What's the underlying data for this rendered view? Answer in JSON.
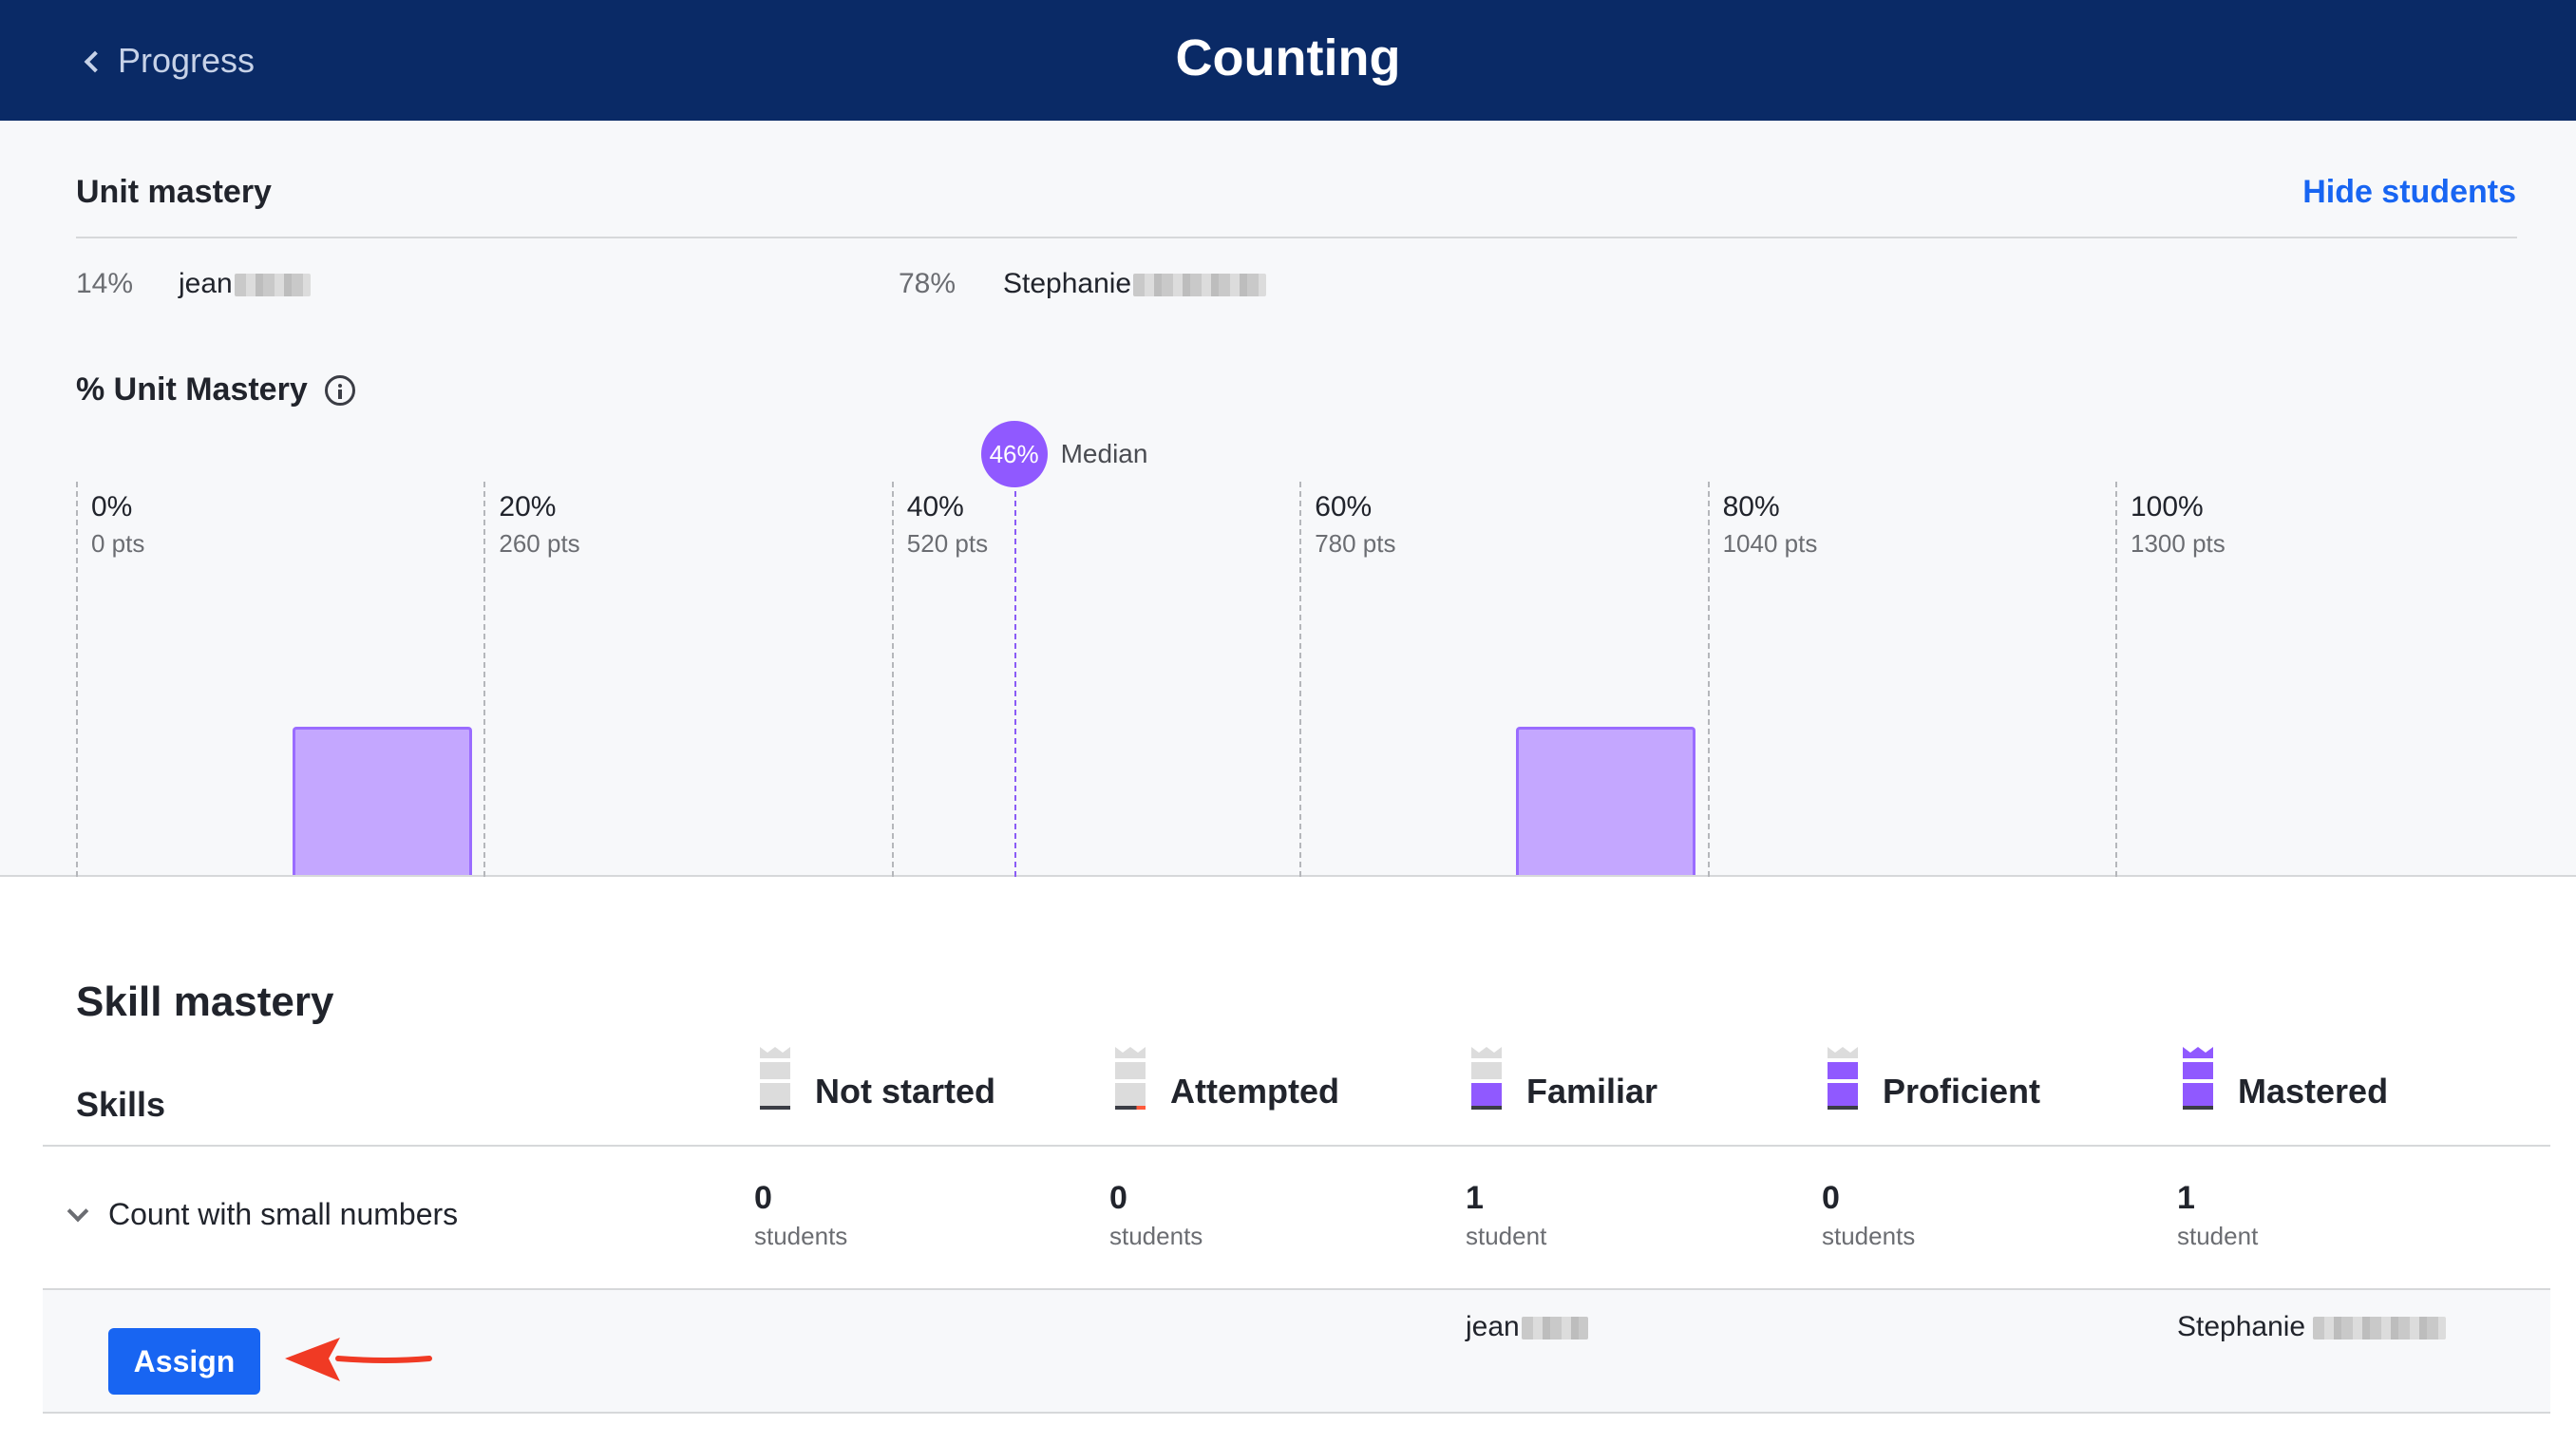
{
  "header": {
    "back_label": "Progress",
    "title": "Counting"
  },
  "unit_mastery": {
    "heading": "Unit mastery",
    "hide_students_label": "Hide students",
    "students": [
      {
        "percent": "14%",
        "name": "jean"
      },
      {
        "percent": "78%",
        "name": "Stephanie"
      }
    ]
  },
  "chart_title": "% Unit Mastery",
  "chart_data": {
    "type": "bar",
    "ticks": [
      {
        "pct": "0%",
        "pts": "0 pts"
      },
      {
        "pct": "20%",
        "pts": "260 pts"
      },
      {
        "pct": "40%",
        "pts": "520 pts"
      },
      {
        "pct": "60%",
        "pts": "780 pts"
      },
      {
        "pct": "80%",
        "pts": "1040 pts"
      },
      {
        "pct": "100%",
        "pts": "1300 pts"
      }
    ],
    "bins": [
      {
        "range": [
          10,
          20
        ],
        "count": 1
      },
      {
        "range": [
          70,
          80
        ],
        "count": 1
      }
    ],
    "median": {
      "value": 46,
      "badge": "46%",
      "label": "Median"
    },
    "xlim": [
      0,
      100
    ],
    "bar_color": "#c4a7ff"
  },
  "skill_mastery": {
    "heading": "Skill mastery",
    "skills_label": "Skills",
    "levels": [
      {
        "label": "Not started",
        "icon": "not-started-icon"
      },
      {
        "label": "Attempted",
        "icon": "attempted-icon"
      },
      {
        "label": "Familiar",
        "icon": "familiar-icon"
      },
      {
        "label": "Proficient",
        "icon": "proficient-icon"
      },
      {
        "label": "Mastered",
        "icon": "mastered-icon"
      }
    ],
    "row": {
      "skill": "Count with small numbers",
      "counts": [
        {
          "num": "0",
          "label": "students"
        },
        {
          "num": "0",
          "label": "students"
        },
        {
          "num": "1",
          "label": "student"
        },
        {
          "num": "0",
          "label": "students"
        },
        {
          "num": "1",
          "label": "student"
        }
      ]
    },
    "assign_label": "Assign",
    "familiar_student": "jean",
    "mastered_student": "Stephanie"
  },
  "colors": {
    "header_bg": "#0a2a66",
    "accent_blue": "#1865f2",
    "mastery_purple": "#9059ff"
  }
}
